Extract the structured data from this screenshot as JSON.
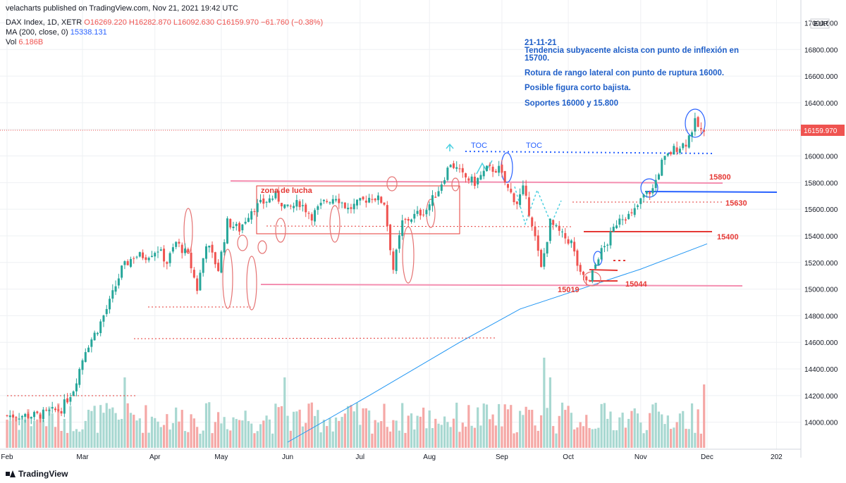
{
  "header": {
    "published": "velacharts published on TradingView.com, Nov 21, 2021 19:42 UTC",
    "symbol": "DAX Index, 1D, XETR",
    "ohlc": "O16269.220  H16282.870  L16092.630  C16159.970  −61.760 (−0.38%)",
    "ma_label": "MA (200, close, 0)",
    "ma_value": "15338.131",
    "vol_label": "Vol",
    "vol_value": "6.186B"
  },
  "footer": {
    "brand": "TradingView"
  },
  "notes": [
    "21-11-21",
    "Tendencia subyacente alcista con punto de inflexión en",
    "15700.",
    "Rotura de rango lateral con punto de ruptura 16000.",
    "Posible figura corto bajista.",
    "Soportes 16000 y 15.800"
  ],
  "colors": {
    "up": "#26a69a",
    "down": "#ef5350",
    "ma": "#2196f3",
    "pink": "#f48fb1",
    "annot_blue": "#1e5ec8",
    "annot_red": "#e53935"
  },
  "chart_data": {
    "type": "candlestick",
    "currency": "EUR",
    "last_price": "16159.970",
    "ylim": [
      13850,
      17050
    ],
    "y_ticks": [
      "17000.000",
      "16800.000",
      "16600.000",
      "16400.000",
      "16200.000",
      "16000.000",
      "15800.000",
      "15600.000",
      "15400.000",
      "15200.000",
      "15000.000",
      "14800.000",
      "14600.000",
      "14400.000",
      "14200.000",
      "14000.000"
    ],
    "x_ticks": [
      "Feb",
      "Mar",
      "Apr",
      "May",
      "Jun",
      "Jul",
      "Aug",
      "Sep",
      "Oct",
      "Nov",
      "Dec",
      "202"
    ],
    "price_path": [
      {
        "t": 0,
        "p": 14050
      },
      {
        "t": 10,
        "p": 14050
      },
      {
        "t": 18,
        "p": 14100
      },
      {
        "t": 22,
        "p": 14250
      },
      {
        "t": 26,
        "p": 14550
      },
      {
        "t": 30,
        "p": 14700
      },
      {
        "t": 34,
        "p": 14900
      },
      {
        "t": 38,
        "p": 15150
      },
      {
        "t": 42,
        "p": 15250
      },
      {
        "t": 46,
        "p": 15250
      },
      {
        "t": 50,
        "p": 15300
      },
      {
        "t": 53,
        "p": 15200
      },
      {
        "t": 56,
        "p": 15350
      },
      {
        "t": 60,
        "p": 15250
      },
      {
        "t": 63,
        "p": 15000
      },
      {
        "t": 66,
        "p": 15350
      },
      {
        "t": 70,
        "p": 15150
      },
      {
        "t": 73,
        "p": 15500
      },
      {
        "t": 77,
        "p": 15450
      },
      {
        "t": 81,
        "p": 15600
      },
      {
        "t": 85,
        "p": 15650
      },
      {
        "t": 89,
        "p": 15700
      },
      {
        "t": 93,
        "p": 15600
      },
      {
        "t": 97,
        "p": 15650
      },
      {
        "t": 101,
        "p": 15550
      },
      {
        "t": 105,
        "p": 15650
      },
      {
        "t": 109,
        "p": 15700
      },
      {
        "t": 113,
        "p": 15600
      },
      {
        "t": 117,
        "p": 15650
      },
      {
        "t": 121,
        "p": 15700
      },
      {
        "t": 125,
        "p": 15650
      },
      {
        "t": 128,
        "p": 15150
      },
      {
        "t": 131,
        "p": 15500
      },
      {
        "t": 135,
        "p": 15550
      },
      {
        "t": 139,
        "p": 15600
      },
      {
        "t": 143,
        "p": 15750
      },
      {
        "t": 147,
        "p": 15950
      },
      {
        "t": 151,
        "p": 15850
      },
      {
        "t": 155,
        "p": 15800
      },
      {
        "t": 159,
        "p": 15900
      },
      {
        "t": 163,
        "p": 15900
      },
      {
        "t": 166,
        "p": 15750
      },
      {
        "t": 169,
        "p": 15650
      },
      {
        "t": 171,
        "p": 15750
      },
      {
        "t": 174,
        "p": 15500
      },
      {
        "t": 177,
        "p": 15150
      },
      {
        "t": 180,
        "p": 15500
      },
      {
        "t": 184,
        "p": 15400
      },
      {
        "t": 187,
        "p": 15350
      },
      {
        "t": 190,
        "p": 15100
      },
      {
        "t": 193,
        "p": 15050
      },
      {
        "t": 196,
        "p": 15250
      },
      {
        "t": 199,
        "p": 15350
      },
      {
        "t": 203,
        "p": 15550
      },
      {
        "t": 207,
        "p": 15550
      },
      {
        "t": 211,
        "p": 15700
      },
      {
        "t": 214,
        "p": 15750
      },
      {
        "t": 217,
        "p": 15950
      },
      {
        "t": 221,
        "p": 16050
      },
      {
        "t": 225,
        "p": 16100
      },
      {
        "t": 228,
        "p": 16250
      },
      {
        "t": 231,
        "p": 16160
      }
    ],
    "ma200_path": [
      {
        "t": 93,
        "p": 13850
      },
      {
        "t": 120,
        "p": 14200
      },
      {
        "t": 150,
        "p": 14600
      },
      {
        "t": 170,
        "p": 14850
      },
      {
        "t": 190,
        "p": 15000
      },
      {
        "t": 210,
        "p": 15150
      },
      {
        "t": 232,
        "p": 15340
      }
    ],
    "annotations": {
      "levels": [
        "15800",
        "15630",
        "15400",
        "15019",
        "15044"
      ],
      "labels": [
        "zona de lucha",
        "TOC",
        "TOC"
      ]
    }
  }
}
